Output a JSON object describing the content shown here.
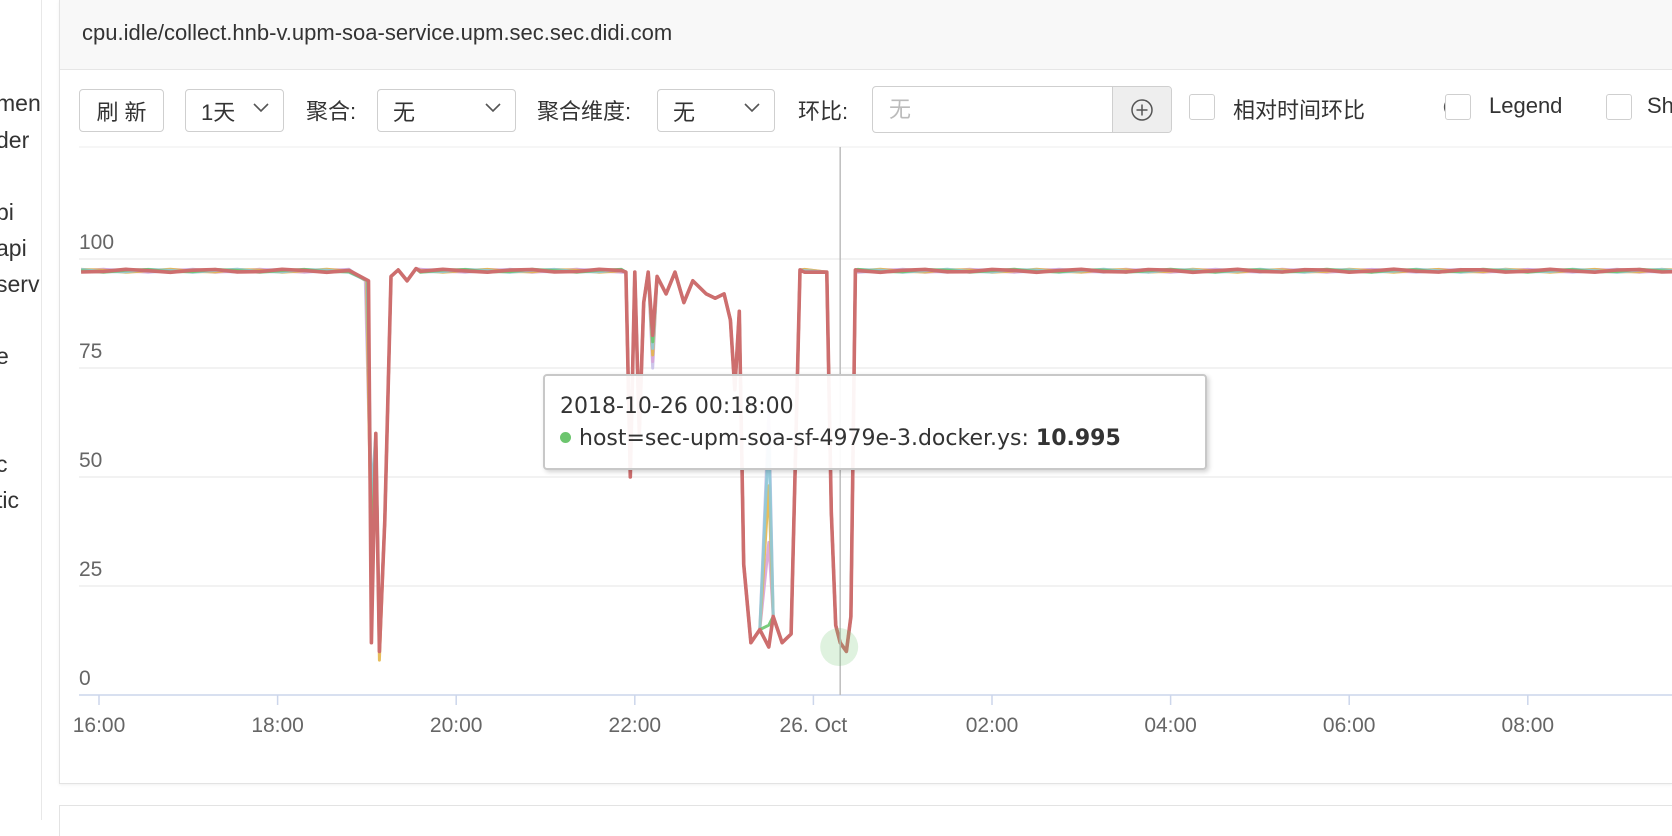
{
  "sidebar": {
    "fragments": [
      "men",
      "der",
      "pi",
      "api",
      "serv",
      "e",
      "c",
      "tic"
    ]
  },
  "panel": {
    "title": "cpu.idle/collect.hnb-v.upm-soa-service.upm.sec.sec.didi.com"
  },
  "toolbar": {
    "refresh_label": "刷 新",
    "time_range": "1天",
    "aggregate_label": "聚合:",
    "aggregate_value": "无",
    "agg_dimension_label": "聚合维度:",
    "agg_dimension_value": "无",
    "compare_label": "环比:",
    "compare_placeholder": "无",
    "relative_time_label": "相对时间环比",
    "legend_label": "Legend",
    "show_label": "Sh",
    "add_icon": "plus-circle-icon",
    "info_icon": "info-circle-icon"
  },
  "tooltip": {
    "time": "2018-10-26 00:18:00",
    "host": "host=sec-upm-soa-sf-4979e-3.docker.ys:",
    "value": "10.995",
    "dot_color": "#6cc56e"
  },
  "chart_data": {
    "type": "line",
    "y_ticks": [
      "0",
      "25",
      "50",
      "75",
      "100"
    ],
    "x_ticks": [
      "16:00",
      "18:00",
      "20:00",
      "22:00",
      "26. Oct",
      "02:00",
      "04:00",
      "06:00",
      "08:00"
    ],
    "ylim": [
      0,
      125
    ],
    "grid": true,
    "crosshair_x": "00:18",
    "series": [
      {
        "color": "#c8c0e8",
        "dip_values": [
          40,
          12,
          65
        ]
      },
      {
        "color": "#d7a3d8",
        "dip_values": [
          36,
          12,
          35
        ]
      },
      {
        "color": "#e4b64a",
        "dip_values": [
          30,
          8,
          48
        ]
      },
      {
        "color": "#8fc9d8",
        "dip_values": [
          45,
          10,
          60
        ]
      },
      {
        "color": "#6cc56e",
        "dip_values": [
          30,
          11,
          16
        ]
      },
      {
        "color": "#cd6e6e",
        "dip_values": [
          12,
          10,
          11
        ]
      }
    ]
  }
}
